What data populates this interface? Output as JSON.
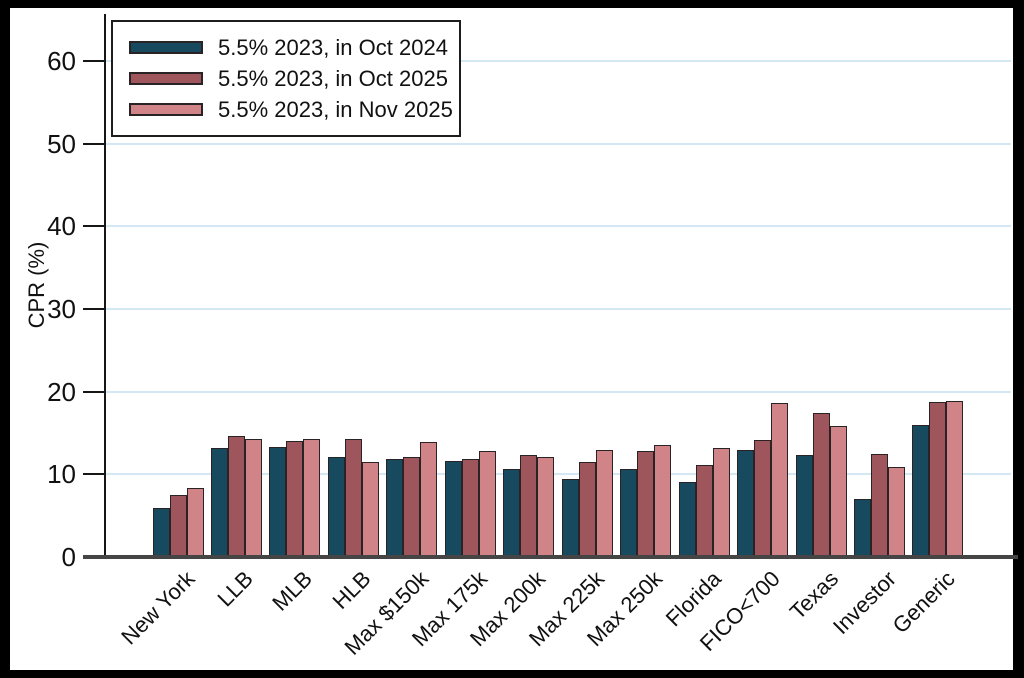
{
  "frame": {
    "outer_background": "#000000",
    "panel_background": "#ffffff",
    "gridline_color": "#d3e8f2",
    "axis_color": "#454545",
    "bar_border_color": "#2a2326",
    "text_color": "#111111"
  },
  "chart_data": {
    "type": "bar",
    "title": "",
    "xlabel": "",
    "ylabel": "CPR (%)",
    "ylim": [
      0,
      65
    ],
    "yticks": [
      0,
      10,
      20,
      30,
      40,
      50,
      60
    ],
    "grid": "horizontal",
    "legend_position": "top-left inside plot area",
    "categories": [
      "New York",
      "LLB",
      "MLB",
      "HLB",
      "Max $150k",
      "Max 175k",
      "Max 200k",
      "Max 225k",
      "Max 250k",
      "Florida",
      "FICO<700",
      "Texas",
      "Investor",
      "Generic"
    ],
    "series": [
      {
        "name": "5.5% 2023, in Oct 2024",
        "color": "#174a5e",
        "values": [
          5.9,
          13.2,
          13.3,
          12.1,
          11.9,
          11.6,
          10.6,
          9.4,
          10.6,
          9.1,
          12.9,
          12.3,
          7.0,
          16.0
        ]
      },
      {
        "name": "5.5% 2023, in Oct 2025",
        "color": "#9e565c",
        "values": [
          7.5,
          14.6,
          14.0,
          14.3,
          12.1,
          11.9,
          12.3,
          11.5,
          12.8,
          11.1,
          14.1,
          17.4,
          12.5,
          18.7
        ]
      },
      {
        "name": "5.5% 2023, in Nov 2025",
        "color": "#d08487",
        "values": [
          8.3,
          14.3,
          14.3,
          11.5,
          13.9,
          12.8,
          12.1,
          12.9,
          13.5,
          13.2,
          18.6,
          15.9,
          10.9,
          18.9
        ]
      }
    ]
  }
}
